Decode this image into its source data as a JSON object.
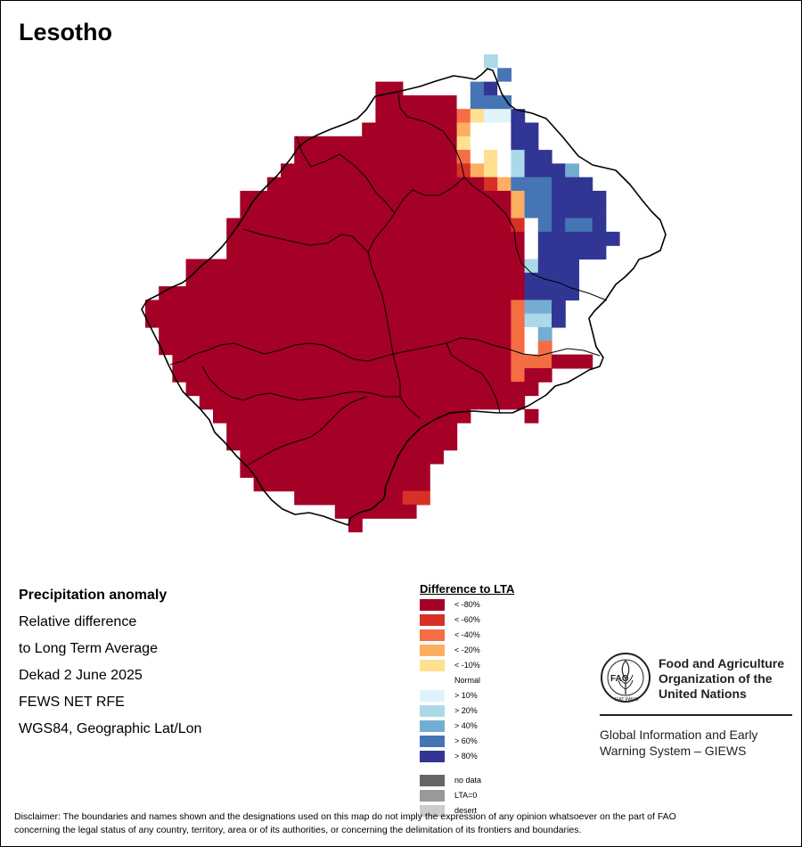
{
  "map": {
    "title": "Lesotho",
    "raster_classes": {
      "D": "< -80%",
      "R": "< -60%",
      "O": "< -40%",
      "A": "< -20%",
      "Y": "< -10%",
      "W": "Normal",
      "L": "> 10%",
      "S": "> 20%",
      "M": "> 40%",
      "B": "> 60%",
      "N": "> 80%"
    },
    "colors": {
      "D": "#a50026",
      "R": "#d73027",
      "O": "#f46d43",
      "A": "#fdae61",
      "Y": "#fee090",
      "W": "#ffffff",
      "L": "#e0f3f8",
      "S": "#abd9e9",
      "M": "#74add1",
      "B": "#4575b4",
      "N": "#313695",
      "nodata": "#666666",
      "lta0": "#999999",
      "desert": "#cccccc"
    }
  },
  "info": {
    "heading": "Precipitation anomaly",
    "line1": "Relative difference",
    "line2": "to Long Term Average",
    "period": "Dekad 2 June 2025",
    "source": "FEWS NET RFE",
    "projection": "WGS84, Geographic Lat/Lon"
  },
  "legend": {
    "title": "Difference to LTA",
    "items": [
      {
        "label": "< -80%",
        "color": "#a50026"
      },
      {
        "label": "< -60%",
        "color": "#d73027"
      },
      {
        "label": "< -40%",
        "color": "#f46d43"
      },
      {
        "label": "< -20%",
        "color": "#fdae61"
      },
      {
        "label": "< -10%",
        "color": "#fee090"
      },
      {
        "label": "Normal",
        "color": "#ffffff"
      },
      {
        "label": "> 10%",
        "color": "#e0f3f8"
      },
      {
        "label": "> 20%",
        "color": "#abd9e9"
      },
      {
        "label": "> 40%",
        "color": "#74add1"
      },
      {
        "label": "> 60%",
        "color": "#4575b4"
      },
      {
        "label": "> 80%",
        "color": "#313695"
      }
    ],
    "extra_items": [
      {
        "label": "no data",
        "color": "#666666"
      },
      {
        "label": "LTA=0",
        "color": "#999999"
      },
      {
        "label": "desert",
        "color": "#cccccc"
      }
    ]
  },
  "fao": {
    "emblem_text": "FAO",
    "motto": "FIAT PANIS",
    "name_line1": "Food and Agriculture",
    "name_line2": "Organization of the",
    "name_line3": "United Nations",
    "giews_line1": "Global Information and Early",
    "giews_line2": "Warning System – GIEWS"
  },
  "disclaimer": {
    "line1": "Disclaimer: The boundaries and names shown and the designations used on this map do not imply the expression of any opinion whatsoever on the part of FAO",
    "line2": "concerning the legal status of any country, territory, area or of its authorities, or concerning the delimitation of its frontiers and boundaries."
  }
}
